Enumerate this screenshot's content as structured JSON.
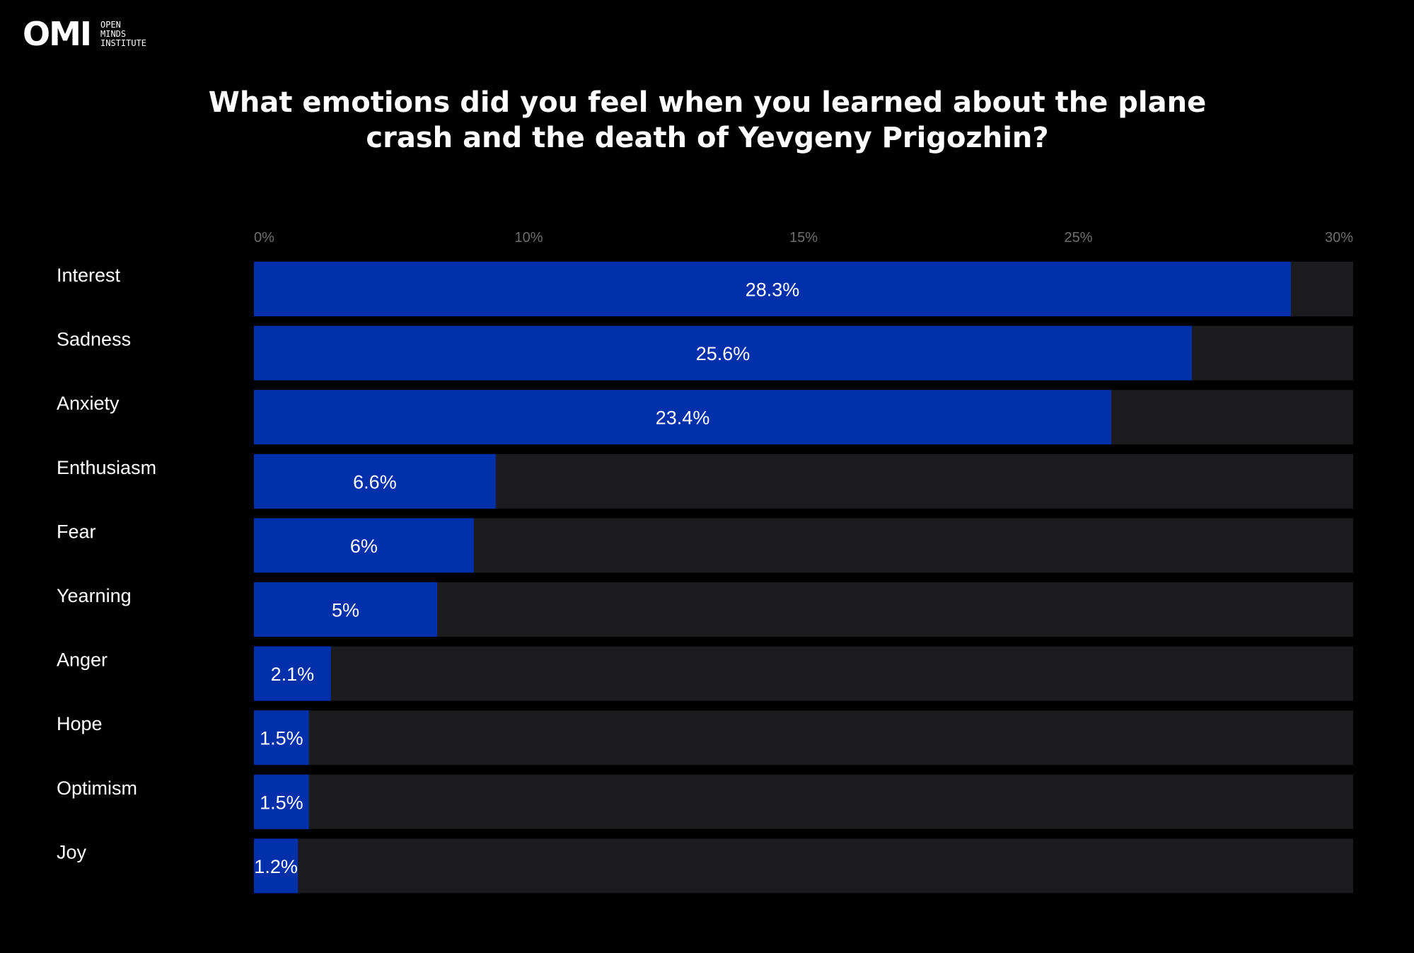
{
  "logo": {
    "mark": "OMI",
    "line1": "OPEN",
    "line2": "MINDS",
    "line3": "INSTITUTE"
  },
  "colors": {
    "background": "#000000",
    "bar": "#0230ab",
    "track": "#1c1c1e",
    "tick": "#6e6e6e",
    "text": "#ffffff"
  },
  "chart_data": {
    "type": "bar",
    "orientation": "horizontal",
    "title": "What emotions did you feel when you learned about the plane crash and the death of Yevgeny Prigozhin?",
    "ticks": [
      "0%",
      "10%",
      "15%",
      "25%",
      "30%"
    ],
    "xlim": [
      0,
      30
    ],
    "categories": [
      "Interest",
      "Sadness",
      "Anxiety",
      "Enthusiasm",
      "Fear",
      "Yearning",
      "Anger",
      "Hope",
      "Optimism",
      "Joy"
    ],
    "values": [
      28.3,
      25.6,
      23.4,
      6.6,
      6,
      5,
      2.1,
      1.5,
      1.5,
      1.2
    ],
    "value_labels": [
      "28.3%",
      "25.6%",
      "23.4%",
      "6.6%",
      "6%",
      "5%",
      "2.1%",
      "1.5%",
      "1.5%",
      "1.2%"
    ],
    "grid": false,
    "legend": "none"
  }
}
